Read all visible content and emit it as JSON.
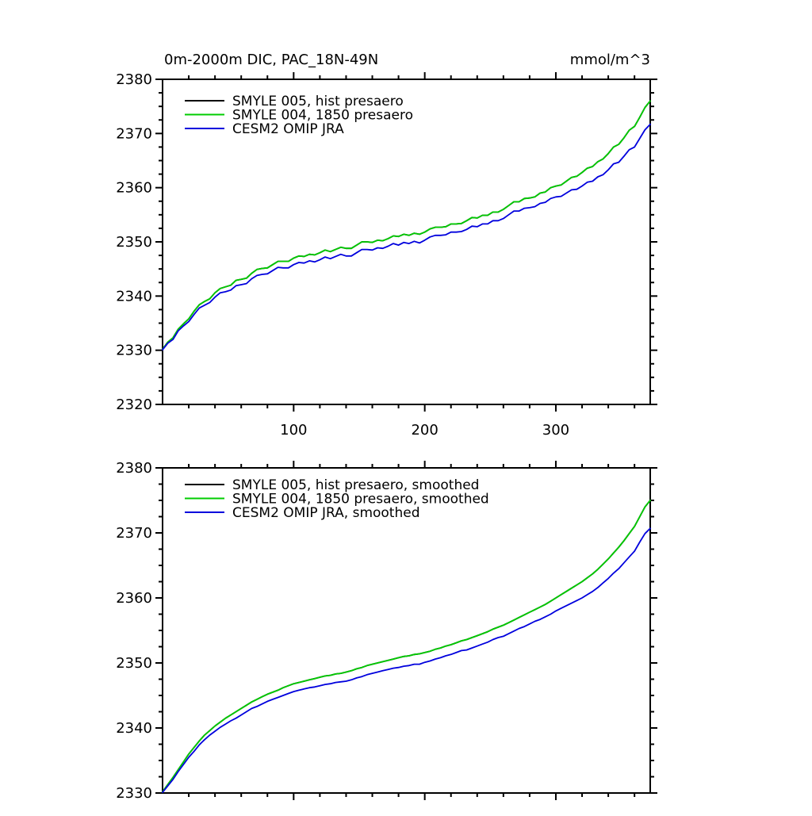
{
  "page": {
    "background": "#ffffff",
    "axis_color": "#000000"
  },
  "chart_data": [
    {
      "type": "line",
      "title": "0m-2000m DIC, PAC_18N-49N",
      "units_label": "mmol/m^3",
      "xlabel": "",
      "ylabel": "",
      "xlim": [
        0,
        372
      ],
      "ylim": [
        2320,
        2380
      ],
      "x_major_ticks": [
        100,
        200,
        300
      ],
      "x_minor_step": 20,
      "y_major_ticks": [
        2320,
        2330,
        2340,
        2350,
        2360,
        2370,
        2380
      ],
      "y_minor_step": 2.5,
      "grid": false,
      "legend_position": "top-left-inside",
      "x": [
        0,
        4,
        8,
        12,
        16,
        20,
        24,
        28,
        32,
        36,
        40,
        44,
        48,
        52,
        56,
        60,
        64,
        68,
        72,
        76,
        80,
        84,
        88,
        92,
        96,
        100,
        104,
        108,
        112,
        116,
        120,
        124,
        128,
        132,
        136,
        140,
        144,
        148,
        152,
        156,
        160,
        164,
        168,
        172,
        176,
        180,
        184,
        188,
        192,
        196,
        200,
        204,
        208,
        212,
        216,
        220,
        224,
        228,
        232,
        236,
        240,
        244,
        248,
        252,
        256,
        260,
        264,
        268,
        272,
        276,
        280,
        284,
        288,
        292,
        296,
        300,
        304,
        308,
        312,
        316,
        320,
        324,
        328,
        332,
        336,
        340,
        344,
        348,
        352,
        356,
        360,
        364,
        368,
        372
      ],
      "series": [
        {
          "name": "SMYLE 005, hist presaero",
          "color": "#000000",
          "values": [
            2330.2,
            2331.5,
            2332.3,
            2333.9,
            2334.9,
            2335.8,
            2337.2,
            2338.4,
            2339.0,
            2339.5,
            2340.6,
            2341.4,
            2341.7,
            2342.0,
            2342.9,
            2343.1,
            2343.3,
            2344.2,
            2344.9,
            2345.1,
            2345.2,
            2345.8,
            2346.4,
            2346.4,
            2346.4,
            2347.0,
            2347.4,
            2347.3,
            2347.7,
            2347.6,
            2348.0,
            2348.5,
            2348.2,
            2348.6,
            2349.0,
            2348.8,
            2348.8,
            2349.4,
            2350.0,
            2350.0,
            2349.9,
            2350.3,
            2350.2,
            2350.6,
            2351.1,
            2351.0,
            2351.4,
            2351.2,
            2351.6,
            2351.4,
            2351.8,
            2352.4,
            2352.7,
            2352.7,
            2352.8,
            2353.3,
            2353.3,
            2353.4,
            2353.9,
            2354.5,
            2354.4,
            2354.9,
            2354.9,
            2355.5,
            2355.5,
            2356.0,
            2356.7,
            2357.4,
            2357.4,
            2358.0,
            2358.1,
            2358.3,
            2359.0,
            2359.2,
            2360.0,
            2360.3,
            2360.5,
            2361.2,
            2361.9,
            2362.1,
            2362.8,
            2363.6,
            2363.9,
            2364.8,
            2365.3,
            2366.3,
            2367.5,
            2368.0,
            2369.2,
            2370.6,
            2371.3,
            2373.0,
            2374.8,
            2376.0
          ]
        },
        {
          "name": "SMYLE 004, 1850 presaero",
          "color": "#00cc00",
          "values": [
            2330.2,
            2331.5,
            2332.3,
            2333.9,
            2334.9,
            2335.8,
            2337.2,
            2338.4,
            2339.0,
            2339.5,
            2340.6,
            2341.4,
            2341.7,
            2342.0,
            2342.9,
            2343.1,
            2343.3,
            2344.2,
            2344.9,
            2345.1,
            2345.2,
            2345.8,
            2346.4,
            2346.4,
            2346.4,
            2347.0,
            2347.4,
            2347.3,
            2347.7,
            2347.6,
            2348.0,
            2348.5,
            2348.2,
            2348.6,
            2349.0,
            2348.8,
            2348.8,
            2349.4,
            2350.0,
            2350.0,
            2349.9,
            2350.3,
            2350.2,
            2350.6,
            2351.1,
            2351.0,
            2351.4,
            2351.2,
            2351.6,
            2351.4,
            2351.8,
            2352.4,
            2352.7,
            2352.7,
            2352.8,
            2353.3,
            2353.3,
            2353.4,
            2353.9,
            2354.5,
            2354.4,
            2354.9,
            2354.9,
            2355.5,
            2355.5,
            2356.0,
            2356.7,
            2357.4,
            2357.4,
            2358.0,
            2358.1,
            2358.3,
            2359.0,
            2359.2,
            2360.0,
            2360.3,
            2360.5,
            2361.2,
            2361.9,
            2362.1,
            2362.8,
            2363.6,
            2363.9,
            2364.8,
            2365.3,
            2366.3,
            2367.5,
            2368.0,
            2369.2,
            2370.6,
            2371.3,
            2373.0,
            2374.8,
            2376.0
          ]
        },
        {
          "name": "CESM2 OMIP JRA",
          "color": "#0000dd",
          "values": [
            2330.1,
            2331.3,
            2332.0,
            2333.6,
            2334.5,
            2335.3,
            2336.6,
            2337.8,
            2338.3,
            2338.8,
            2339.8,
            2340.6,
            2340.8,
            2341.1,
            2341.9,
            2342.1,
            2342.3,
            2343.2,
            2343.8,
            2344.0,
            2344.1,
            2344.7,
            2345.3,
            2345.2,
            2345.2,
            2345.8,
            2346.2,
            2346.1,
            2346.5,
            2346.3,
            2346.7,
            2347.2,
            2346.9,
            2347.3,
            2347.7,
            2347.4,
            2347.4,
            2348.0,
            2348.6,
            2348.6,
            2348.5,
            2348.9,
            2348.8,
            2349.2,
            2349.7,
            2349.4,
            2349.9,
            2349.7,
            2350.1,
            2349.8,
            2350.3,
            2350.9,
            2351.2,
            2351.2,
            2351.3,
            2351.8,
            2351.8,
            2351.9,
            2352.3,
            2352.9,
            2352.8,
            2353.3,
            2353.3,
            2353.9,
            2353.9,
            2354.3,
            2355.0,
            2355.7,
            2355.7,
            2356.2,
            2356.3,
            2356.5,
            2357.1,
            2357.3,
            2358.0,
            2358.3,
            2358.4,
            2359.0,
            2359.6,
            2359.7,
            2360.3,
            2361.0,
            2361.2,
            2362.0,
            2362.4,
            2363.3,
            2364.4,
            2364.7,
            2365.8,
            2367.0,
            2367.5,
            2369.1,
            2370.7,
            2371.7
          ]
        }
      ]
    },
    {
      "type": "line",
      "title": "",
      "units_label": "",
      "xlabel": "",
      "ylabel": "",
      "xlim": [
        0,
        372
      ],
      "ylim": [
        2330,
        2380
      ],
      "x_major_ticks": [
        100,
        200,
        300
      ],
      "x_minor_step": 20,
      "y_major_ticks": [
        2330,
        2340,
        2350,
        2360,
        2370,
        2380
      ],
      "y_minor_step": 2.5,
      "grid": false,
      "legend_position": "top-left-inside",
      "x": [
        0,
        4,
        8,
        12,
        16,
        20,
        24,
        28,
        32,
        36,
        40,
        44,
        48,
        52,
        56,
        60,
        64,
        68,
        72,
        76,
        80,
        84,
        88,
        92,
        96,
        100,
        104,
        108,
        112,
        116,
        120,
        124,
        128,
        132,
        136,
        140,
        144,
        148,
        152,
        156,
        160,
        164,
        168,
        172,
        176,
        180,
        184,
        188,
        192,
        196,
        200,
        204,
        208,
        212,
        216,
        220,
        224,
        228,
        232,
        236,
        240,
        244,
        248,
        252,
        256,
        260,
        264,
        268,
        272,
        276,
        280,
        284,
        288,
        292,
        296,
        300,
        304,
        308,
        312,
        316,
        320,
        324,
        328,
        332,
        336,
        340,
        344,
        348,
        352,
        356,
        360,
        364,
        368,
        372
      ],
      "series": [
        {
          "name": "SMYLE 005, hist presaero, smoothed",
          "color": "#000000",
          "values": [
            2330.2,
            2331.3,
            2332.4,
            2333.6,
            2334.8,
            2336.0,
            2337.0,
            2338.0,
            2338.9,
            2339.6,
            2340.3,
            2340.9,
            2341.5,
            2342.0,
            2342.5,
            2343.0,
            2343.5,
            2344.0,
            2344.4,
            2344.8,
            2345.2,
            2345.5,
            2345.8,
            2346.2,
            2346.5,
            2346.8,
            2347.0,
            2347.2,
            2347.4,
            2347.6,
            2347.8,
            2348.0,
            2348.1,
            2348.3,
            2348.4,
            2348.6,
            2348.8,
            2349.1,
            2349.3,
            2349.6,
            2349.8,
            2350.0,
            2350.2,
            2350.4,
            2350.6,
            2350.8,
            2351.0,
            2351.1,
            2351.3,
            2351.4,
            2351.6,
            2351.8,
            2352.1,
            2352.3,
            2352.6,
            2352.8,
            2353.1,
            2353.4,
            2353.6,
            2353.9,
            2354.2,
            2354.5,
            2354.8,
            2355.2,
            2355.5,
            2355.8,
            2356.2,
            2356.6,
            2357.0,
            2357.4,
            2357.8,
            2358.2,
            2358.6,
            2359.0,
            2359.5,
            2360.0,
            2360.5,
            2361.0,
            2361.5,
            2362.0,
            2362.5,
            2363.1,
            2363.7,
            2364.4,
            2365.2,
            2366.0,
            2366.9,
            2367.8,
            2368.8,
            2369.9,
            2371.0,
            2372.5,
            2374.0,
            2375.0
          ]
        },
        {
          "name": "SMYLE 004, 1850 presaero, smoothed",
          "color": "#00cc00",
          "values": [
            2330.2,
            2331.3,
            2332.4,
            2333.6,
            2334.8,
            2336.0,
            2337.0,
            2338.0,
            2338.9,
            2339.6,
            2340.3,
            2340.9,
            2341.5,
            2342.0,
            2342.5,
            2343.0,
            2343.5,
            2344.0,
            2344.4,
            2344.8,
            2345.2,
            2345.5,
            2345.8,
            2346.2,
            2346.5,
            2346.8,
            2347.0,
            2347.2,
            2347.4,
            2347.6,
            2347.8,
            2348.0,
            2348.1,
            2348.3,
            2348.4,
            2348.6,
            2348.8,
            2349.1,
            2349.3,
            2349.6,
            2349.8,
            2350.0,
            2350.2,
            2350.4,
            2350.6,
            2350.8,
            2351.0,
            2351.1,
            2351.3,
            2351.4,
            2351.6,
            2351.8,
            2352.1,
            2352.3,
            2352.6,
            2352.8,
            2353.1,
            2353.4,
            2353.6,
            2353.9,
            2354.2,
            2354.5,
            2354.8,
            2355.2,
            2355.5,
            2355.8,
            2356.2,
            2356.6,
            2357.0,
            2357.4,
            2357.8,
            2358.2,
            2358.6,
            2359.0,
            2359.5,
            2360.0,
            2360.5,
            2361.0,
            2361.5,
            2362.0,
            2362.5,
            2363.1,
            2363.7,
            2364.4,
            2365.2,
            2366.0,
            2366.9,
            2367.8,
            2368.8,
            2369.9,
            2371.0,
            2372.5,
            2374.0,
            2375.0
          ]
        },
        {
          "name": "CESM2 OMIP JRA, smoothed",
          "color": "#0000dd",
          "values": [
            2330.1,
            2331.1,
            2332.1,
            2333.3,
            2334.4,
            2335.5,
            2336.4,
            2337.4,
            2338.2,
            2338.9,
            2339.5,
            2340.1,
            2340.6,
            2341.1,
            2341.5,
            2342.0,
            2342.5,
            2343.0,
            2343.3,
            2343.7,
            2344.1,
            2344.4,
            2344.7,
            2345.0,
            2345.3,
            2345.6,
            2345.8,
            2346.0,
            2346.2,
            2346.3,
            2346.5,
            2346.7,
            2346.8,
            2347.0,
            2347.1,
            2347.2,
            2347.4,
            2347.7,
            2347.9,
            2348.2,
            2348.4,
            2348.6,
            2348.8,
            2349.0,
            2349.2,
            2349.3,
            2349.5,
            2349.6,
            2349.8,
            2349.8,
            2350.1,
            2350.3,
            2350.6,
            2350.8,
            2351.1,
            2351.3,
            2351.6,
            2351.9,
            2352.0,
            2352.3,
            2352.6,
            2352.9,
            2353.2,
            2353.6,
            2353.9,
            2354.1,
            2354.5,
            2354.9,
            2355.3,
            2355.6,
            2356.0,
            2356.4,
            2356.7,
            2357.1,
            2357.5,
            2358.0,
            2358.4,
            2358.8,
            2359.2,
            2359.6,
            2360.0,
            2360.5,
            2361.0,
            2361.6,
            2362.3,
            2363.0,
            2363.8,
            2364.5,
            2365.4,
            2366.3,
            2367.2,
            2368.6,
            2369.9,
            2370.7
          ]
        }
      ]
    }
  ]
}
